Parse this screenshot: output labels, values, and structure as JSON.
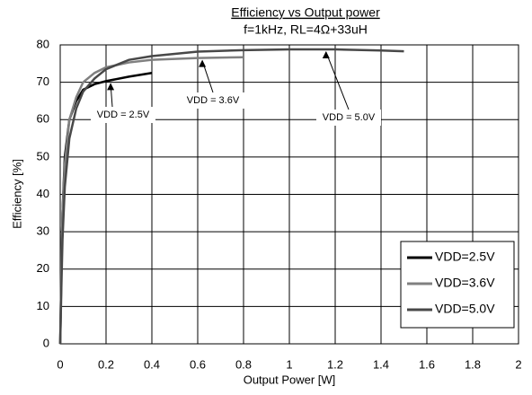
{
  "chart_data": {
    "type": "line",
    "title": "Efficiency vs Output power",
    "subtitle": "f=1kHz, RL=4Ω+33uH",
    "x_label": "Output Power [W]",
    "y_label": "Efficiency [%]",
    "xlim": [
      0,
      2
    ],
    "xticks": [
      0,
      0.2,
      0.4,
      0.6,
      0.8,
      1,
      1.2,
      1.4,
      1.6,
      1.8,
      2
    ],
    "ylim": [
      0,
      80
    ],
    "yticks": [
      0,
      10,
      20,
      30,
      40,
      50,
      60,
      70,
      80
    ],
    "grid": true,
    "legend": "lower right",
    "series": [
      {
        "name": "VDD=2.5V",
        "color": "#000000",
        "x": [
          0,
          0.005,
          0.01,
          0.02,
          0.04,
          0.07,
          0.1,
          0.15,
          0.2,
          0.3,
          0.4
        ],
        "values": [
          0,
          20,
          35,
          50,
          60,
          65,
          68,
          69.5,
          70.3,
          71.5,
          72.5
        ]
      },
      {
        "name": "VDD=3.6V",
        "color": "#808080",
        "x": [
          0,
          0.005,
          0.01,
          0.02,
          0.04,
          0.07,
          0.1,
          0.15,
          0.2,
          0.3,
          0.4,
          0.6,
          0.8
        ],
        "values": [
          0,
          20,
          35,
          48,
          60,
          66,
          70,
          72.5,
          74,
          75.3,
          76,
          76.5,
          76.7
        ]
      },
      {
        "name": "VDD=5.0V",
        "color": "#484848",
        "x": [
          0,
          0.005,
          0.01,
          0.02,
          0.04,
          0.07,
          0.1,
          0.15,
          0.2,
          0.3,
          0.4,
          0.6,
          0.8,
          1.0,
          1.2,
          1.4,
          1.5
        ],
        "values": [
          0,
          15,
          28,
          42,
          55,
          63,
          67.5,
          71,
          73.5,
          76,
          77,
          78.2,
          78.6,
          78.8,
          78.8,
          78.5,
          78.3
        ]
      }
    ],
    "annotations": [
      "VDD = 2.5V",
      "VDD = 3.6V",
      "VDD = 5.0V"
    ]
  }
}
